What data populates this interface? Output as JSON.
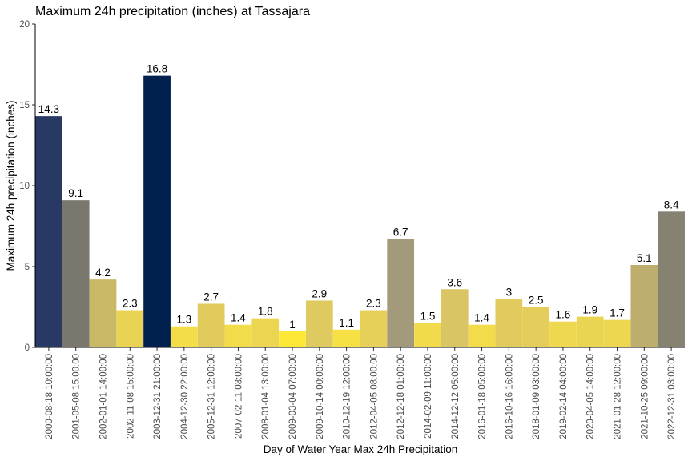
{
  "chart_data": {
    "type": "bar",
    "title": "Maximum 24h precipitation (inches) at Tassajara",
    "xlabel": "Day of Water Year Max 24h Precipitation",
    "ylabel": "Maximum 24h precipitation (inches)",
    "ylim": [
      0,
      20
    ],
    "yticks": [
      0,
      5,
      10,
      15,
      20
    ],
    "grid": false,
    "legend": "none",
    "categories": [
      "2000-08-18 10:00:00",
      "2001-05-08 15:00:00",
      "2002-01-01 14:00:00",
      "2002-11-08 15:00:00",
      "2003-12-31 21:00:00",
      "2004-12-30 22:00:00",
      "2005-12-31 12:00:00",
      "2007-02-11 03:00:00",
      "2008-01-04 13:00:00",
      "2009-03-04 07:00:00",
      "2009-10-14 00:00:00",
      "2010-12-19 12:00:00",
      "2012-04-05 08:00:00",
      "2012-12-18 01:00:00",
      "2014-02-09 11:00:00",
      "2014-12-12 05:00:00",
      "2016-01-18 05:00:00",
      "2016-10-16 16:00:00",
      "2018-01-09 03:00:00",
      "2019-02-14 04:00:00",
      "2020-04-05 14:00:00",
      "2021-01-28 12:00:00",
      "2021-10-25 09:00:00",
      "2022-12-31 03:00:00"
    ],
    "values": [
      14.3,
      9.1,
      4.2,
      2.3,
      16.8,
      1.3,
      2.7,
      1.4,
      1.8,
      1.0,
      2.9,
      1.1,
      2.3,
      6.7,
      1.5,
      3.6,
      1.4,
      3.0,
      2.5,
      1.6,
      1.9,
      1.7,
      5.1,
      8.4
    ],
    "data_labels": [
      "14.3",
      "9.1",
      "4.2",
      "2.3",
      "16.8",
      "1.3",
      "2.7",
      "1.4",
      "1.8",
      "1",
      "2.9",
      "1.1",
      "2.3",
      "6.7",
      "1.5",
      "3.6",
      "1.4",
      "3",
      "2.5",
      "1.6",
      "1.9",
      "1.7",
      "5.1",
      "8.4"
    ],
    "colors": [
      "#283963",
      "#7a776f",
      "#c9b866",
      "#e8d352",
      "#00214d",
      "#f4dd48",
      "#e2cb5d",
      "#f3dc49",
      "#ecd651",
      "#fde737",
      "#dfca5f",
      "#f7e043",
      "#e6d059",
      "#a29a7a",
      "#f1da4b",
      "#d9c563",
      "#f3dc49",
      "#e1ca5e",
      "#e4cd5b",
      "#eed84f",
      "#ead552",
      "#edd751",
      "#beae6d",
      "#858272"
    ]
  }
}
